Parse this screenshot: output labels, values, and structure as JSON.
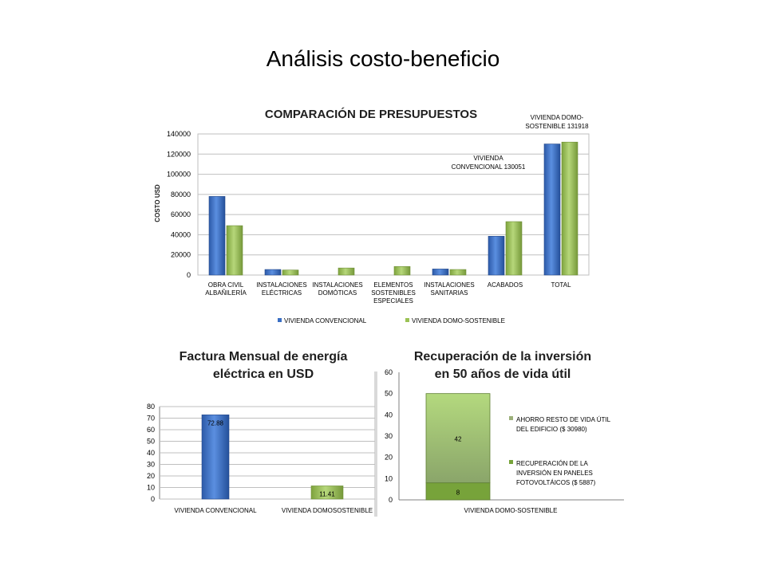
{
  "slide": {
    "title": "Análisis costo-beneficio"
  },
  "colors": {
    "blue": "#3a6fc4",
    "green": "#9bc255",
    "grid": "#bfbfbf"
  },
  "chart_data": [
    {
      "type": "bar",
      "title": "COMPARACIÓN DE PRESUPUESTOS",
      "ylabel": "COSTO USD",
      "ylim": [
        0,
        140000
      ],
      "yticks": [
        "0",
        "20000",
        "40000",
        "60000",
        "80000",
        "100000",
        "120000",
        "140000"
      ],
      "categories": [
        [
          "OBRA CIVIL",
          "ALBAÑILERÍA"
        ],
        [
          "INSTALACIONES",
          "ELÉCTRICAS"
        ],
        [
          "INSTALACIONES",
          "DOMÓTICAS"
        ],
        [
          "ELEMENTOS",
          "SOSTENIBLES",
          "ESPECIALES"
        ],
        [
          "INSTALACIONES",
          "SANITARIAS"
        ],
        [
          "ACABADOS"
        ],
        [
          "TOTAL"
        ]
      ],
      "series": [
        {
          "name": "VIVIENDA CONVENCIONAL",
          "values": [
            78000,
            5500,
            0,
            0,
            6000,
            38500,
            130051
          ]
        },
        {
          "name": "VIVIENDA DOMO-SOSTENIBLE",
          "values": [
            49000,
            5000,
            7000,
            8500,
            5500,
            53000,
            131918
          ]
        }
      ],
      "annotations": [
        [
          "VIVIENDA DOMO-",
          "SOSTENIBLE 131918"
        ],
        [
          "VIVIENDA",
          "CONVENCIONAL 130051"
        ]
      ]
    },
    {
      "type": "bar",
      "title": [
        "Factura Mensual de energía",
        "eléctrica en USD"
      ],
      "ylim": [
        0,
        80
      ],
      "yticks": [
        "0",
        "10",
        "20",
        "30",
        "40",
        "50",
        "60",
        "70",
        "80"
      ],
      "categories": [
        "VIVIENDA CONVENCIONAL",
        "VIVIENDA DOMOSOSTENIBLE"
      ],
      "values": [
        72.88,
        11.41
      ],
      "data_labels": [
        "72.88",
        "11.41"
      ]
    },
    {
      "type": "bar",
      "stacked": true,
      "title": [
        "Recuperación  de la inversión",
        "en 50 años de vida útil"
      ],
      "ylim": [
        0,
        60
      ],
      "yticks": [
        "0",
        "10",
        "20",
        "30",
        "40",
        "50",
        "60"
      ],
      "categories": [
        "VIVIENDA DOMO-SOSTENIBLE"
      ],
      "series": [
        {
          "name": [
            "RECUPERACIÓN DE LA",
            "INVERSIÓN EN PANELES",
            "FOTOVOLTÁICOS ($ 5887)"
          ],
          "values": [
            8
          ],
          "label": "8"
        },
        {
          "name": [
            "AHORRO RESTO DE VIDA ÚTIL",
            "DEL EDIFICIO ($ 30980)"
          ],
          "values": [
            42
          ],
          "label": "42"
        }
      ]
    }
  ]
}
